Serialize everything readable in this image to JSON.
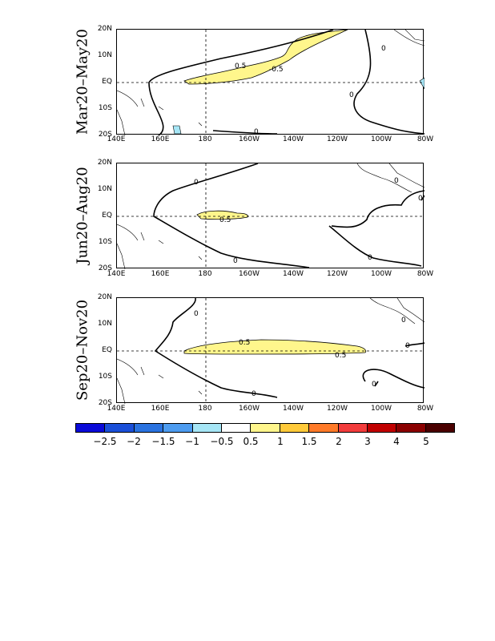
{
  "panels": [
    {
      "season": "Mar20–May20",
      "contour_labels": [
        "0.5",
        "-0.5",
        "0",
        "0",
        "0"
      ]
    },
    {
      "season": "Jun20–Aug20",
      "contour_labels": [
        "0.5",
        "0",
        "0",
        "0",
        "0",
        "0"
      ]
    },
    {
      "season": "Sep20–Nov20",
      "contour_labels": [
        "0.5",
        "0.5",
        "0",
        "0",
        "0",
        "0",
        "0"
      ]
    }
  ],
  "lat_labels": [
    "20N",
    "10N",
    "EQ",
    "10S",
    "20S"
  ],
  "lon_labels": [
    "140E",
    "160E",
    "180",
    "160W",
    "140W",
    "120W",
    "100W",
    "80W"
  ],
  "colorbar": {
    "ticks": [
      "−2.5",
      "−2",
      "−1.5",
      "−1",
      "−0.5",
      "0.5",
      "1",
      "1.5",
      "2",
      "3",
      "4",
      "5"
    ],
    "colors": [
      "#0a0ad8",
      "#1a4fd8",
      "#2a73e0",
      "#4d9cf0",
      "#a6e6f6",
      "#ffffff",
      "#fff68c",
      "#ffca3a",
      "#ff7a28",
      "#f23c3c",
      "#c00000",
      "#8a0000",
      "#4a0000"
    ]
  },
  "colors": {
    "positive_fill": "#fff68c",
    "negative_fill": "#a6e6f6",
    "contour": "#000000"
  }
}
